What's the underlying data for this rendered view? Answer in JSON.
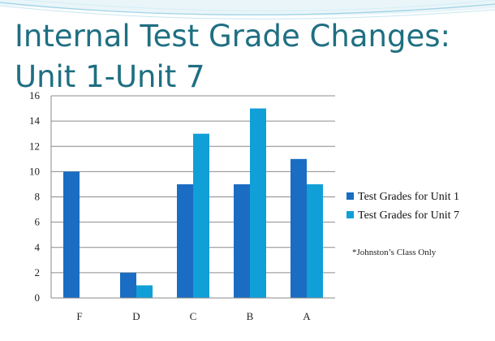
{
  "slide": {
    "title": "Internal Test Grade Changes: Unit 1-Unit 7"
  },
  "chart_data": {
    "type": "bar",
    "title": "",
    "xlabel": "",
    "ylabel": "",
    "categories": [
      "F",
      "D",
      "C",
      "B",
      "A"
    ],
    "series": [
      {
        "name": "Test Grades for Unit 1",
        "values": [
          10,
          2,
          9,
          9,
          11
        ],
        "color": "#1a6dc2"
      },
      {
        "name": "Test Grades for Unit 7",
        "values": [
          0,
          1,
          13,
          15,
          9
        ],
        "color": "#119fd8"
      }
    ],
    "ylim": [
      0,
      16
    ],
    "yticks": [
      0,
      2,
      4,
      6,
      8,
      10,
      12,
      14,
      16
    ],
    "grid": true,
    "legend_position": "right",
    "annotation": "*Johnston’s Class Only"
  }
}
